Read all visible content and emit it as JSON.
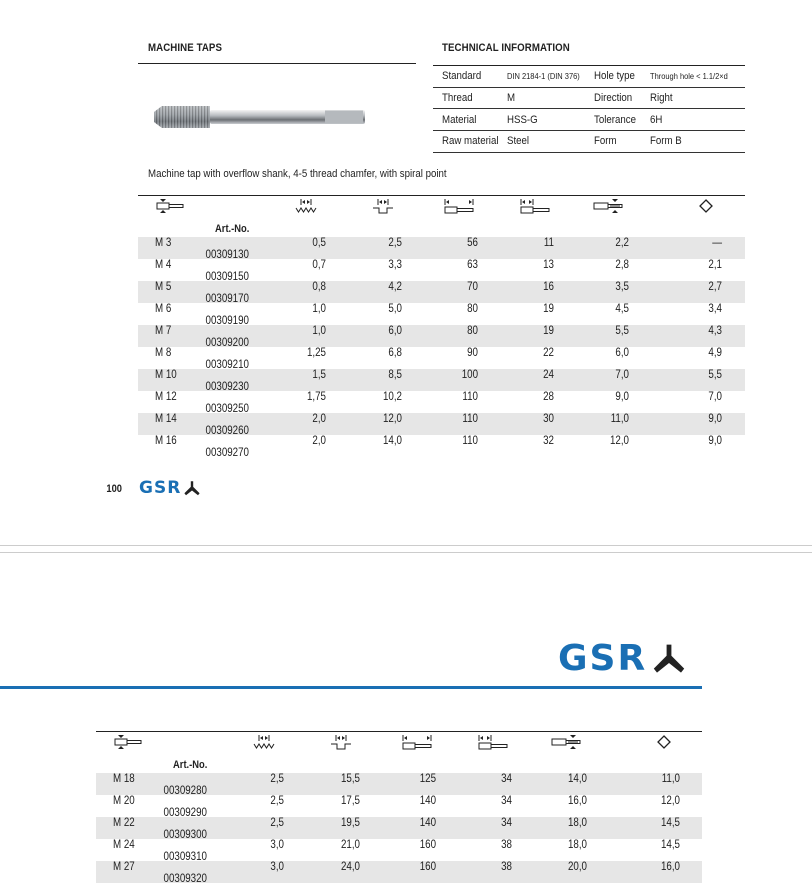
{
  "page1": {
    "section_title": "MACHINE TAPS",
    "tech_title": "TECHNICAL INFORMATION",
    "tech_rows": [
      {
        "l1": "Standard",
        "v1": "DIN 2184-1 (DIN 376)",
        "l2": "Hole type",
        "v2": "Through hole < 1.1/2×d"
      },
      {
        "l1": "Thread",
        "v1": "M",
        "l2": "Direction",
        "v2": "Right"
      },
      {
        "l1": "Material",
        "v1": "HSS-G",
        "l2": "Tolerance",
        "v2": "6H"
      },
      {
        "l1": "Raw material",
        "v1": "Steel",
        "l2": "Form",
        "v2": "Form B"
      }
    ],
    "description": "Machine tap with overflow shank, 4-5 thread chamfer, with spiral point",
    "columns": [
      "thread-diameter-icon",
      "pitch-icon",
      "thread-length-icon",
      "total-length-icon",
      "shank-length-icon",
      "shank-diameter-icon",
      "square-icon",
      "Art.-No."
    ],
    "rows": [
      [
        "M 3",
        "0,5",
        "2,5",
        "56",
        "11",
        "2,2",
        "—",
        "00309130"
      ],
      [
        "M 4",
        "0,7",
        "3,3",
        "63",
        "13",
        "2,8",
        "2,1",
        "00309150"
      ],
      [
        "M 5",
        "0,8",
        "4,2",
        "70",
        "16",
        "3,5",
        "2,7",
        "00309170"
      ],
      [
        "M 6",
        "1,0",
        "5,0",
        "80",
        "19",
        "4,5",
        "3,4",
        "00309190"
      ],
      [
        "M 7",
        "1,0",
        "6,0",
        "80",
        "19",
        "5,5",
        "4,3",
        "00309200"
      ],
      [
        "M 8",
        "1,25",
        "6,8",
        "90",
        "22",
        "6,0",
        "4,9",
        "00309210"
      ],
      [
        "M 10",
        "1,5",
        "8,5",
        "100",
        "24",
        "7,0",
        "5,5",
        "00309230"
      ],
      [
        "M 12",
        "1,75",
        "10,2",
        "110",
        "28",
        "9,0",
        "7,0",
        "00309250"
      ],
      [
        "M 14",
        "2,0",
        "12,0",
        "110",
        "30",
        "11,0",
        "9,0",
        "00309260"
      ],
      [
        "M 16",
        "2,0",
        "14,0",
        "110",
        "32",
        "12,0",
        "9,0",
        "00309270"
      ]
    ],
    "page_number": "100",
    "logo": "GSR"
  },
  "page2": {
    "logo": "GSR",
    "rows": [
      [
        "M 18",
        "2,5",
        "15,5",
        "125",
        "34",
        "14,0",
        "11,0",
        "00309280"
      ],
      [
        "M 20",
        "2,5",
        "17,5",
        "140",
        "34",
        "16,0",
        "12,0",
        "00309290"
      ],
      [
        "M 22",
        "2,5",
        "19,5",
        "140",
        "34",
        "18,0",
        "14,5",
        "00309300"
      ],
      [
        "M 24",
        "3,0",
        "21,0",
        "160",
        "38",
        "18,0",
        "14,5",
        "00309310"
      ],
      [
        "M 27",
        "3,0",
        "24,0",
        "160",
        "38",
        "20,0",
        "16,0",
        "00309320"
      ]
    ]
  },
  "colors": {
    "brand_blue": "#1a6fb4",
    "row_stripe": "#e6e6e6"
  }
}
